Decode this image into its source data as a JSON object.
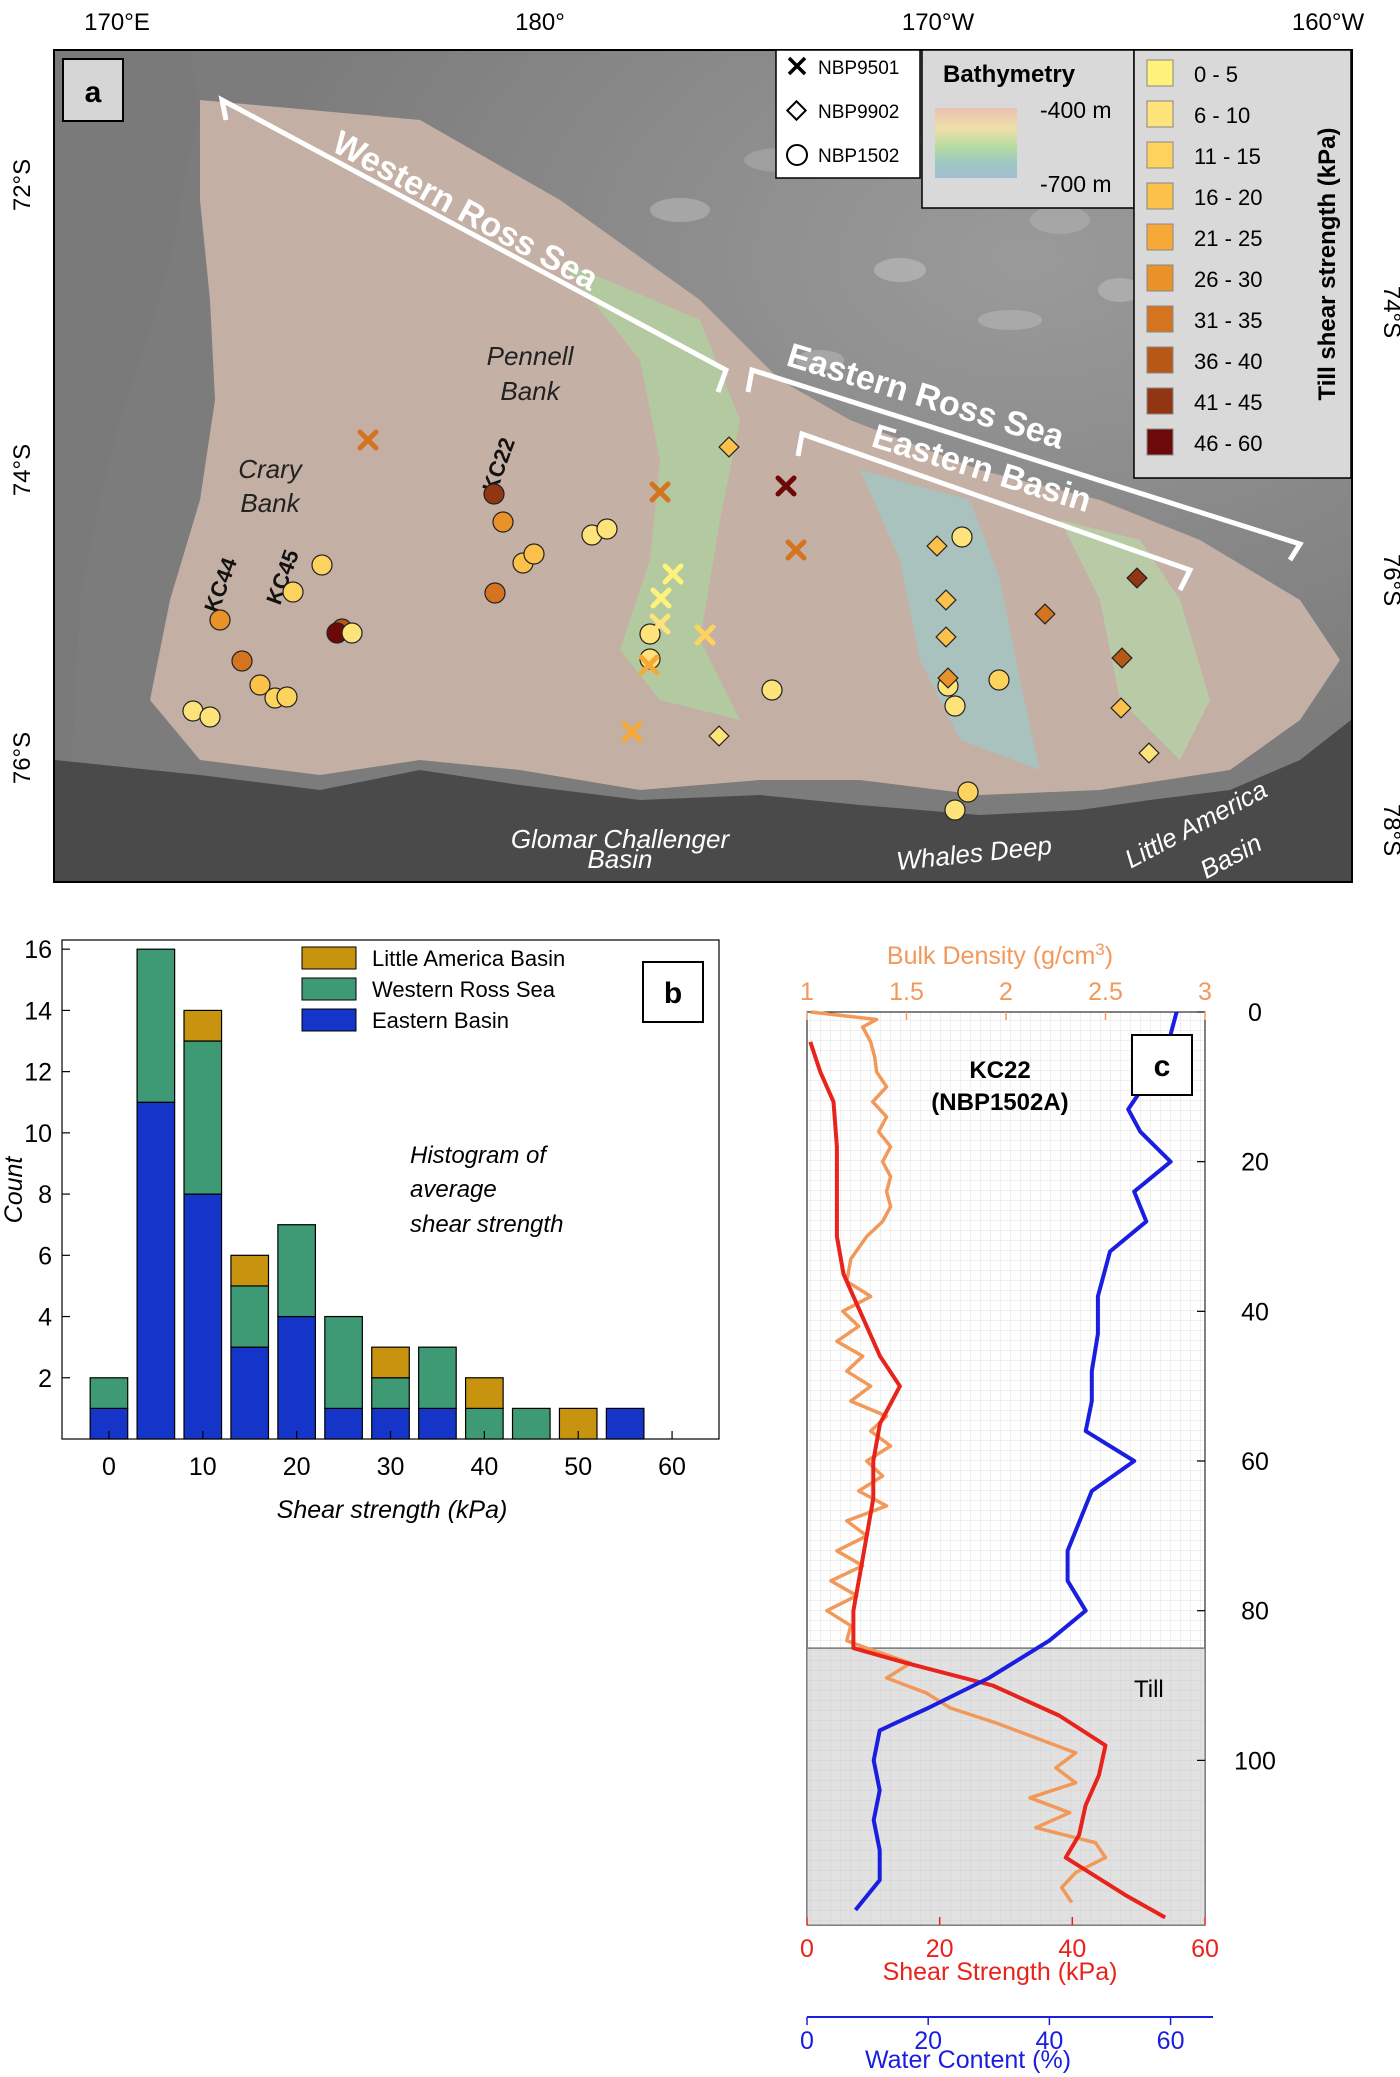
{
  "panel_a": {
    "panel_label": "a",
    "lon_ticks": [
      "170°E",
      "180°",
      "170°W",
      "160°W"
    ],
    "lat_ticks_left": [
      "72°S",
      "74°S",
      "76°S"
    ],
    "lat_ticks_right": [
      "74°S",
      "76°S",
      "78°S"
    ],
    "region_labels": {
      "western_ross_sea": "Western Ross Sea",
      "eastern_ross_sea": "Eastern Ross Sea",
      "eastern_basin": "Eastern Basin",
      "pennell_bank": [
        "Pennell",
        "Bank"
      ],
      "crary_bank": [
        "Crary",
        "Bank"
      ],
      "glomar": [
        "Glomar Challenger",
        "Basin"
      ],
      "whales_deep": "Whales Deep",
      "little_america": [
        "Little America",
        "Basin"
      ]
    },
    "core_labels": [
      "KC22",
      "KC44",
      "KC45"
    ],
    "cruise_legend": [
      "NBP9501",
      "NBP9902",
      "NBP1502"
    ],
    "bathymetry": {
      "title": "Bathymetry",
      "top": "-400 m",
      "bottom": "-700 m"
    },
    "strength_legend": {
      "title": "Till shear strength (kPa)",
      "classes": [
        "0 - 5",
        "6 - 10",
        "11 - 15",
        "16 - 20",
        "21 - 25",
        "26 - 30",
        "31 - 35",
        "36 - 40",
        "41 - 45",
        "46 - 60"
      ],
      "colors": [
        "#fff27a",
        "#fee27a",
        "#fdd35e",
        "#fcc14a",
        "#f7a937",
        "#ea922a",
        "#d57420",
        "#b85816",
        "#913512",
        "#6b0a08"
      ]
    }
  },
  "chart_data": [
    {
      "type": "bar",
      "panel_label": "b",
      "title": "",
      "annotation": [
        "Histogram of",
        "average",
        "shear strength"
      ],
      "xlabel": "Shear strength (kPa)",
      "ylabel": "Count",
      "xlim": [
        -5,
        65
      ],
      "ylim": [
        0,
        16.3
      ],
      "xticks": [
        0,
        10,
        20,
        30,
        40,
        50,
        60
      ],
      "yticks": [
        2,
        4,
        6,
        8,
        10,
        12,
        14,
        16
      ],
      "bin_centers": [
        0,
        5,
        10,
        15,
        20,
        25,
        30,
        35,
        40,
        45,
        50,
        55
      ],
      "bar_width": 4,
      "legend_position": "top-right",
      "series": [
        {
          "name": "Eastern Basin",
          "color": "#1535c8",
          "values": [
            1,
            11,
            8,
            3,
            4,
            1,
            1,
            1,
            0,
            0,
            0,
            1
          ]
        },
        {
          "name": "Western Ross Sea",
          "color": "#3d9a74",
          "values": [
            1,
            5,
            5,
            2,
            3,
            3,
            1,
            2,
            1,
            1,
            0,
            0
          ]
        },
        {
          "name": "Little America Basin",
          "color": "#c89410",
          "values": [
            0,
            0,
            1,
            1,
            0,
            0,
            1,
            0,
            1,
            0,
            1,
            0
          ]
        }
      ]
    },
    {
      "type": "line",
      "panel_label": "c",
      "core_title": [
        "KC22",
        "(NBP1502A)"
      ],
      "ylabel_ticks": [
        0,
        20,
        40,
        60,
        80,
        100
      ],
      "ylim": [
        0,
        122
      ],
      "till_top_depth": 85,
      "till_label": "Till",
      "axes": {
        "bulk_density": {
          "label_main": "Bulk Density (g/cm",
          "label_sup": "3",
          "label_end": ")",
          "ticks": [
            "1",
            "1.5",
            "2",
            "2.5",
            "3"
          ],
          "range": [
            1,
            3
          ]
        },
        "shear_strength": {
          "label": "Shear Strength (kPa)",
          "ticks": [
            "0",
            "20",
            "40",
            "60"
          ],
          "range": [
            0,
            60
          ]
        },
        "water_content": {
          "label": "Water Content (%)",
          "ticks": [
            "0",
            "20",
            "40",
            "60"
          ],
          "range": [
            0,
            67
          ]
        }
      },
      "series": [
        {
          "name": "Bulk Density",
          "color": "#f2995a",
          "axis": "bulk_density",
          "points": [
            [
              1.02,
              0
            ],
            [
              1.35,
              1
            ],
            [
              1.28,
              2
            ],
            [
              1.32,
              4
            ],
            [
              1.34,
              6
            ],
            [
              1.35,
              8
            ],
            [
              1.4,
              10
            ],
            [
              1.33,
              12
            ],
            [
              1.4,
              14
            ],
            [
              1.36,
              16
            ],
            [
              1.42,
              18
            ],
            [
              1.38,
              20
            ],
            [
              1.42,
              22
            ],
            [
              1.4,
              24
            ],
            [
              1.42,
              26
            ],
            [
              1.38,
              28
            ],
            [
              1.3,
              30
            ],
            [
              1.22,
              33
            ],
            [
              1.2,
              36
            ],
            [
              1.32,
              38
            ],
            [
              1.18,
              40
            ],
            [
              1.26,
              42
            ],
            [
              1.15,
              44
            ],
            [
              1.28,
              46
            ],
            [
              1.2,
              48
            ],
            [
              1.32,
              50
            ],
            [
              1.22,
              52
            ],
            [
              1.4,
              54
            ],
            [
              1.32,
              56
            ],
            [
              1.42,
              58
            ],
            [
              1.3,
              60
            ],
            [
              1.38,
              62
            ],
            [
              1.26,
              64
            ],
            [
              1.4,
              66
            ],
            [
              1.2,
              68
            ],
            [
              1.3,
              70
            ],
            [
              1.15,
              72
            ],
            [
              1.28,
              74
            ],
            [
              1.12,
              76
            ],
            [
              1.25,
              78
            ],
            [
              1.1,
              80
            ],
            [
              1.22,
              82
            ],
            [
              1.2,
              84
            ],
            [
              1.3,
              85
            ],
            [
              1.52,
              87
            ],
            [
              1.4,
              89
            ],
            [
              1.6,
              91
            ],
            [
              1.72,
              93
            ],
            [
              1.95,
              95
            ],
            [
              2.15,
              97
            ],
            [
              2.35,
              99
            ],
            [
              2.25,
              101
            ],
            [
              2.35,
              103
            ],
            [
              2.12,
              105
            ],
            [
              2.32,
              107
            ],
            [
              2.15,
              109
            ],
            [
              2.45,
              111
            ],
            [
              2.5,
              113
            ],
            [
              2.35,
              115
            ],
            [
              2.28,
              117
            ],
            [
              2.33,
              119
            ]
          ]
        },
        {
          "name": "Shear Strength",
          "color": "#e8231c",
          "axis": "shear_strength",
          "points": [
            [
              0.5,
              4
            ],
            [
              2,
              8
            ],
            [
              4,
              12
            ],
            [
              4.5,
              18
            ],
            [
              4.5,
              24
            ],
            [
              4.5,
              30
            ],
            [
              5.5,
              35
            ],
            [
              7,
              38
            ],
            [
              9,
              42
            ],
            [
              11,
              46
            ],
            [
              14,
              50
            ],
            [
              11,
              55
            ],
            [
              10,
              60
            ],
            [
              10,
              65
            ],
            [
              9,
              70
            ],
            [
              8,
              75
            ],
            [
              7,
              80
            ],
            [
              7,
              85
            ],
            [
              15,
              87
            ],
            [
              28,
              90
            ],
            [
              38,
              94
            ],
            [
              45,
              98
            ],
            [
              44,
              102
            ],
            [
              42,
              106
            ],
            [
              41,
              110
            ],
            [
              39,
              113
            ],
            [
              48,
              118
            ],
            [
              54,
              121
            ]
          ]
        },
        {
          "name": "Water Content",
          "color": "#1a1ee0",
          "axis": "water_content",
          "points": [
            [
              61,
              0
            ],
            [
              60,
              3
            ],
            [
              59,
              5
            ],
            [
              58,
              7
            ],
            [
              53,
              13
            ],
            [
              55,
              16
            ],
            [
              60,
              20
            ],
            [
              54,
              24
            ],
            [
              56,
              28
            ],
            [
              50,
              32
            ],
            [
              48,
              38
            ],
            [
              48,
              43
            ],
            [
              47,
              48
            ],
            [
              47,
              52
            ],
            [
              46,
              56
            ],
            [
              54,
              60
            ],
            [
              47,
              64
            ],
            [
              45,
              68
            ],
            [
              43,
              72
            ],
            [
              43,
              76
            ],
            [
              46,
              80
            ],
            [
              40,
              84
            ],
            [
              30,
              89
            ],
            [
              20,
              93
            ],
            [
              12,
              96
            ],
            [
              11,
              100
            ],
            [
              12,
              104
            ],
            [
              11,
              108
            ],
            [
              12,
              112
            ],
            [
              12,
              116
            ],
            [
              8,
              120
            ]
          ]
        }
      ]
    }
  ]
}
